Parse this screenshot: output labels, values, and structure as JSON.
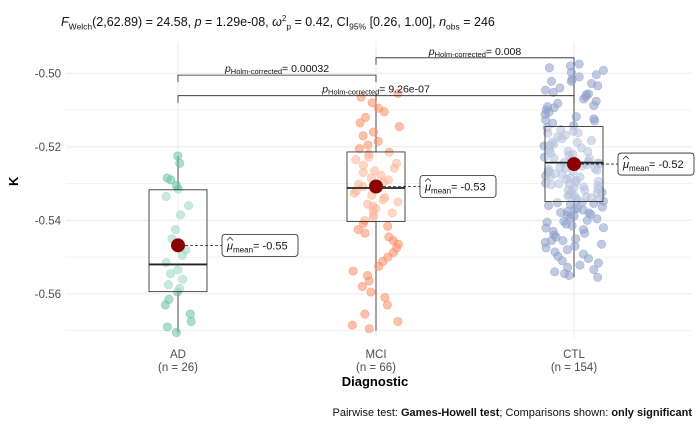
{
  "stats_line": {
    "f_label": "F",
    "f_sub": "Welch",
    "f_args": "(2,62.89) = 24.58, ",
    "p_label": "p",
    "p_value": " = 1.29e-08, ",
    "omega_label": "ω",
    "omega_sub": "p",
    "omega_sup": "2",
    "omega_value": " = 0.42, CI",
    "ci_sub": "95%",
    "ci_value": " [0.26, 1.00], ",
    "n_label": "n",
    "n_sub": "obs",
    "n_value": " = 246"
  },
  "caption": {
    "prefix": "Pairwise test: ",
    "test": "Games-Howell test",
    "middle": "; Comparisons shown: ",
    "shown": "only significant"
  },
  "colors": {
    "AD": "#66c2a5",
    "MCI": "#fc8d62",
    "CTL": "#8da0cb",
    "mean": "#8b0000",
    "grid": "#ebebeb"
  },
  "chart_data": {
    "type": "box-violin-scatter",
    "xlabel": "Diagnostic",
    "ylabel": "K",
    "ylim": [
      -0.572,
      -0.4915
    ],
    "y_ticks": [
      -0.56,
      -0.54,
      -0.52,
      -0.5
    ],
    "y_tick_labels": [
      "-0.56",
      "-0.54",
      "-0.52",
      "-0.50"
    ],
    "groups": [
      {
        "name": "AD",
        "n_label": "(n = 26)",
        "box": {
          "q1": -0.5594,
          "median": -0.552,
          "q3": -0.5317,
          "whisker_low": -0.5705,
          "whisker_high": -0.5225
        },
        "mean": -0.5468,
        "mean_label": "= -0.55",
        "points": [
          -0.5225,
          -0.5245,
          -0.5285,
          -0.529,
          -0.5305,
          -0.5315,
          -0.5335,
          -0.536,
          -0.5385,
          -0.5425,
          -0.545,
          -0.548,
          -0.5495,
          -0.5515,
          -0.5535,
          -0.5545,
          -0.556,
          -0.5575,
          -0.5585,
          -0.5595,
          -0.5615,
          -0.563,
          -0.5655,
          -0.5675,
          -0.569,
          -0.5705
        ]
      },
      {
        "name": "MCI",
        "n_label": "(n = 66)",
        "box": {
          "q1": -0.5403,
          "median": -0.5312,
          "q3": -0.5214,
          "whisker_low": -0.57,
          "whisker_high": -0.5055
        },
        "mean": -0.5308,
        "mean_label": "= -0.53",
        "points": [
          -0.5055,
          -0.5065,
          -0.508,
          -0.5095,
          -0.5105,
          -0.512,
          -0.5135,
          -0.5145,
          -0.516,
          -0.517,
          -0.5185,
          -0.5195,
          -0.5205,
          -0.5215,
          -0.522,
          -0.5228,
          -0.5235,
          -0.5245,
          -0.525,
          -0.5258,
          -0.5265,
          -0.527,
          -0.5278,
          -0.5285,
          -0.529,
          -0.5296,
          -0.5302,
          -0.5308,
          -0.5314,
          -0.532,
          -0.5326,
          -0.5332,
          -0.5338,
          -0.5344,
          -0.535,
          -0.5356,
          -0.5362,
          -0.5368,
          -0.5374,
          -0.538,
          -0.5386,
          -0.5393,
          -0.54,
          -0.5408,
          -0.5416,
          -0.5425,
          -0.5435,
          -0.5445,
          -0.5455,
          -0.5465,
          -0.5475,
          -0.5488,
          -0.55,
          -0.5512,
          -0.5525,
          -0.5538,
          -0.555,
          -0.5565,
          -0.558,
          -0.5595,
          -0.561,
          -0.563,
          -0.5655,
          -0.5675,
          -0.5685,
          -0.5695
        ]
      },
      {
        "name": "CTL",
        "n_label": "(n = 154)",
        "box": {
          "q1": -0.5349,
          "median": -0.5243,
          "q3": -0.5145,
          "whisker_low": -0.5555,
          "whisker_high": -0.4975
        },
        "mean": -0.5247,
        "mean_label": "= -0.52",
        "points": [
          -0.4975,
          -0.498,
          -0.4985,
          -0.4992,
          -0.4998,
          -0.5004,
          -0.501,
          -0.5016,
          -0.5022,
          -0.5028,
          -0.5034,
          -0.504,
          -0.5046,
          -0.5052,
          -0.5058,
          -0.5064,
          -0.507,
          -0.5076,
          -0.5082,
          -0.5088,
          -0.5094,
          -0.51,
          -0.5106,
          -0.5112,
          -0.5118,
          -0.5124,
          -0.513,
          -0.5136,
          -0.5142,
          -0.5148,
          -0.5153,
          -0.5158,
          -0.5163,
          -0.5168,
          -0.5173,
          -0.5178,
          -0.5183,
          -0.5188,
          -0.5193,
          -0.5198,
          -0.5203,
          -0.5208,
          -0.5212,
          -0.5216,
          -0.522,
          -0.5224,
          -0.5228,
          -0.5232,
          -0.5236,
          -0.524,
          -0.5243,
          -0.5246,
          -0.5249,
          -0.5252,
          -0.5255,
          -0.5258,
          -0.5261,
          -0.5264,
          -0.5267,
          -0.527,
          -0.5273,
          -0.5276,
          -0.5279,
          -0.5282,
          -0.5285,
          -0.5288,
          -0.5291,
          -0.5294,
          -0.5297,
          -0.53,
          -0.5303,
          -0.5306,
          -0.5309,
          -0.5312,
          -0.5315,
          -0.5318,
          -0.5321,
          -0.5324,
          -0.5327,
          -0.533,
          -0.5333,
          -0.5336,
          -0.5339,
          -0.5342,
          -0.5345,
          -0.5348,
          -0.5351,
          -0.5354,
          -0.5357,
          -0.536,
          -0.5364,
          -0.5368,
          -0.5372,
          -0.5376,
          -0.538,
          -0.5384,
          -0.5388,
          -0.5392,
          -0.5396,
          -0.54,
          -0.5405,
          -0.541,
          -0.5415,
          -0.542,
          -0.5425,
          -0.543,
          -0.5435,
          -0.544,
          -0.5445,
          -0.545,
          -0.5455,
          -0.546,
          -0.5465,
          -0.547,
          -0.5475,
          -0.548,
          -0.5486,
          -0.5492,
          -0.5498,
          -0.5504,
          -0.551,
          -0.5516,
          -0.5522,
          -0.5528,
          -0.5534,
          -0.554,
          -0.5545,
          -0.555,
          -0.5555,
          -0.5162,
          -0.5197,
          -0.5231,
          -0.5266,
          -0.53,
          -0.5334,
          -0.5369,
          -0.5403,
          -0.5127,
          -0.5091,
          -0.5056,
          -0.5022,
          -0.5188,
          -0.5244,
          -0.5281,
          -0.5317,
          -0.5352,
          -0.5386,
          -0.5421,
          -0.5455,
          -0.5213,
          -0.5259,
          -0.5299,
          -0.5339,
          -0.5379
        ]
      }
    ],
    "comparisons": [
      {
        "pair": [
          "AD",
          "MCI"
        ],
        "label_p": "p",
        "label_sub": "Holm-corrected",
        "label_value": "= 0.00032",
        "y": -0.5005
      },
      {
        "pair": [
          "AD",
          "CTL"
        ],
        "label_p": "p",
        "label_sub": "Holm-corrected",
        "label_value": "= 9.26e-07",
        "y": -0.5061
      },
      {
        "pair": [
          "MCI",
          "CTL"
        ],
        "label_p": "p",
        "label_sub": "Holm-corrected",
        "label_value": "= 0.008",
        "y": -0.4958
      }
    ]
  }
}
